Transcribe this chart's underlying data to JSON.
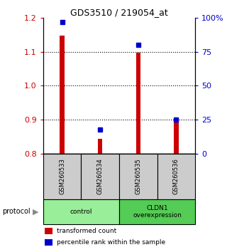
{
  "title": "GDS3510 / 219054_at",
  "samples": [
    "GSM260533",
    "GSM260534",
    "GSM260535",
    "GSM260536"
  ],
  "transformed_counts": [
    1.148,
    0.843,
    1.098,
    0.898
  ],
  "percentile_ranks": [
    97,
    18,
    80,
    25
  ],
  "ylim_left": [
    0.8,
    1.2
  ],
  "ylim_right": [
    0,
    100
  ],
  "yticks_left": [
    0.8,
    0.9,
    1.0,
    1.1,
    1.2
  ],
  "yticks_right": [
    0,
    25,
    50,
    75,
    100
  ],
  "ytick_labels_right": [
    "0",
    "25",
    "50",
    "75",
    "100%"
  ],
  "gridline_values": [
    0.9,
    1.0,
    1.1
  ],
  "bar_color": "#cc0000",
  "dot_color": "#0000cc",
  "bar_width": 0.12,
  "groups": [
    {
      "label": "control",
      "samples": [
        0,
        1
      ],
      "color": "#99ee99"
    },
    {
      "label": "CLDN1\noverexpression",
      "samples": [
        2,
        3
      ],
      "color": "#55cc55"
    }
  ],
  "protocol_label": "protocol",
  "legend_bar_label": "transformed count",
  "legend_dot_label": "percentile rank within the sample",
  "left_tick_color": "#cc0000",
  "right_tick_color": "#0000cc",
  "baseline": 0.8,
  "sample_box_color": "#cccccc",
  "background_color": "#ffffff"
}
